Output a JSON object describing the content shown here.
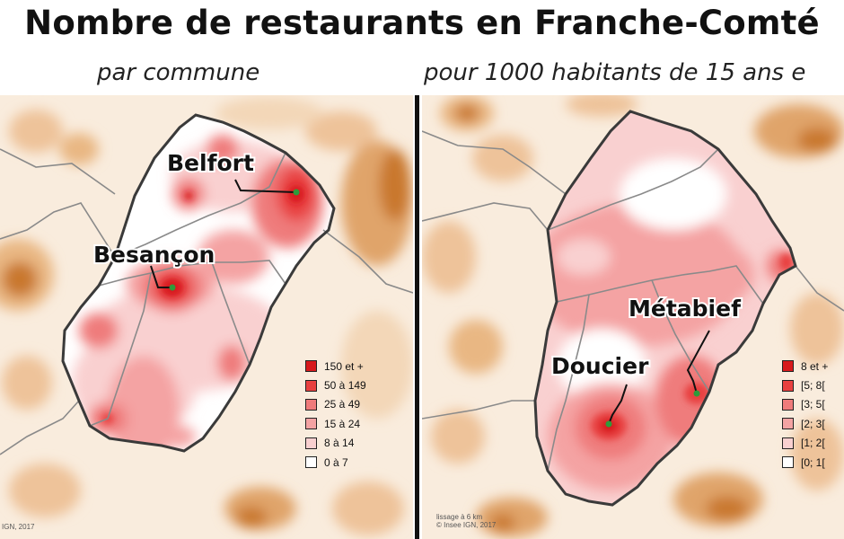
{
  "title": "Nombre de restaurants en Franche-Comté",
  "left_map": {
    "subtitle": "par commune",
    "cities": [
      {
        "name": "Belfort"
      },
      {
        "name": "Besançon"
      }
    ],
    "legend": [
      {
        "label": "150 et +",
        "color": "#d7191c"
      },
      {
        "label": "50 à 149",
        "color": "#e8403f"
      },
      {
        "label": "25 à 49",
        "color": "#ef7b7b"
      },
      {
        "label": "15 à 24",
        "color": "#f4a3a3"
      },
      {
        "label": "8 à 14",
        "color": "#f9d0d0"
      },
      {
        "label": "0 à 7",
        "color": "#ffffff"
      }
    ],
    "credit": "IGN, 2017"
  },
  "right_map": {
    "subtitle": "pour 1000 habitants de 15 ans e",
    "cities": [
      {
        "name": "Métabief"
      },
      {
        "name": "Doucier"
      }
    ],
    "legend": [
      {
        "label": "8 et +",
        "color": "#d7191c"
      },
      {
        "label": "[5; 8[",
        "color": "#e8403f"
      },
      {
        "label": "[3; 5[",
        "color": "#ef7b7b"
      },
      {
        "label": "[2; 3[",
        "color": "#f4a3a3"
      },
      {
        "label": "[1; 2[",
        "color": "#f9d0d0"
      },
      {
        "label": "[0; 1[",
        "color": "#ffffff"
      }
    ],
    "credit_line1": "lissage à 6 km",
    "credit_line2": "© Insee IGN, 2017"
  },
  "colors": {
    "outside_light": "#f6e2cc",
    "outside_mid": "#e9b783",
    "outside_dark": "#c9782e",
    "region_border": "#3a3a3a",
    "dept_border": "#8a8a8a",
    "city_marker": "#2e9b3a"
  }
}
